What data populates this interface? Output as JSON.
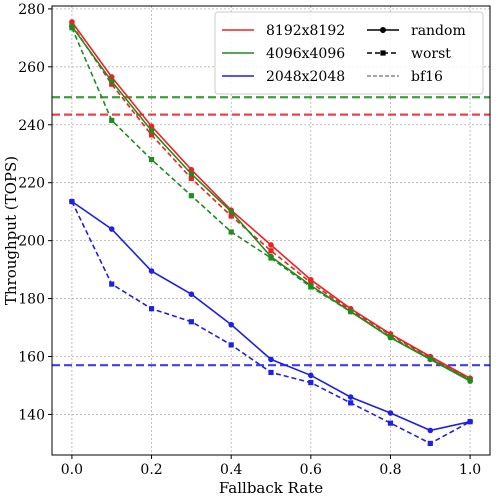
{
  "chart_data": {
    "type": "line",
    "title": "",
    "xlabel": "Fallback Rate",
    "ylabel": "Throughput (TOPS)",
    "xlim": [
      -0.05,
      1.05
    ],
    "ylim": [
      126,
      281
    ],
    "xticks": [
      0.0,
      0.2,
      0.4,
      0.6,
      0.8,
      1.0
    ],
    "xtick_labels": [
      "0.0",
      "0.2",
      "0.4",
      "0.6",
      "0.8",
      "1.0"
    ],
    "yticks": [
      140,
      160,
      180,
      200,
      220,
      240,
      260,
      280
    ],
    "ytick_labels": [
      "140",
      "160",
      "180",
      "200",
      "220",
      "240",
      "260",
      "280"
    ],
    "grid": true,
    "legend_placement": "top-right",
    "legend_colors": [
      {
        "label": "8192x8192",
        "color": "#ee2222"
      },
      {
        "label": "4096x4096",
        "color": "#1e8c1e"
      },
      {
        "label": "2048x2048",
        "color": "#1f1fe6"
      }
    ],
    "legend_styles": [
      {
        "label": "random",
        "style": "solid",
        "marker": "circle"
      },
      {
        "label": "worst",
        "style": "dashed",
        "marker": "square"
      },
      {
        "label": "bf16",
        "style": "dashed-gray",
        "marker": "none"
      }
    ],
    "x": [
      0.0,
      0.1,
      0.2,
      0.3,
      0.4,
      0.5,
      0.6,
      0.7,
      0.8,
      0.9,
      1.0
    ],
    "series": [
      {
        "size": "8192x8192",
        "kind": "random",
        "color": "#ee2222",
        "values": [
          275.5,
          256.5,
          239.5,
          224.5,
          210.5,
          198.5,
          186.5,
          176.5,
          167.8,
          160.0,
          152.5
        ]
      },
      {
        "size": "8192x8192",
        "kind": "worst",
        "color": "#ee2222",
        "values": [
          274.5,
          254.0,
          236.5,
          221.5,
          208.5,
          196.5,
          185.5,
          176.0,
          167.5,
          159.5,
          152.0
        ]
      },
      {
        "size": "4096x4096",
        "kind": "random",
        "color": "#1e8c1e",
        "values": [
          274.0,
          255.0,
          238.0,
          223.0,
          210.0,
          194.5,
          184.5,
          175.5,
          166.5,
          159.0,
          151.5
        ]
      },
      {
        "size": "4096x4096",
        "kind": "worst",
        "color": "#1e8c1e",
        "values": [
          273.5,
          241.5,
          228.0,
          215.5,
          203.0,
          194.0,
          184.0,
          175.5,
          166.8,
          159.2,
          152.0
        ]
      },
      {
        "size": "2048x2048",
        "kind": "random",
        "color": "#1f1fe6",
        "values": [
          213.5,
          204.0,
          189.5,
          181.5,
          171.0,
          159.0,
          153.5,
          146.0,
          140.5,
          134.5,
          137.5
        ]
      },
      {
        "size": "2048x2048",
        "kind": "worst",
        "color": "#1f1fe6",
        "values": [
          213.5,
          185.0,
          176.5,
          172.0,
          164.0,
          154.5,
          151.0,
          144.0,
          137.0,
          130.0,
          137.5
        ]
      }
    ],
    "bf16_lines": [
      {
        "size": "8192x8192",
        "color": "#ee2222",
        "value": 243.5
      },
      {
        "size": "4096x4096",
        "color": "#1e8c1e",
        "value": 249.5
      },
      {
        "size": "2048x2048",
        "color": "#1f1fe6",
        "value": 157.0
      }
    ]
  }
}
